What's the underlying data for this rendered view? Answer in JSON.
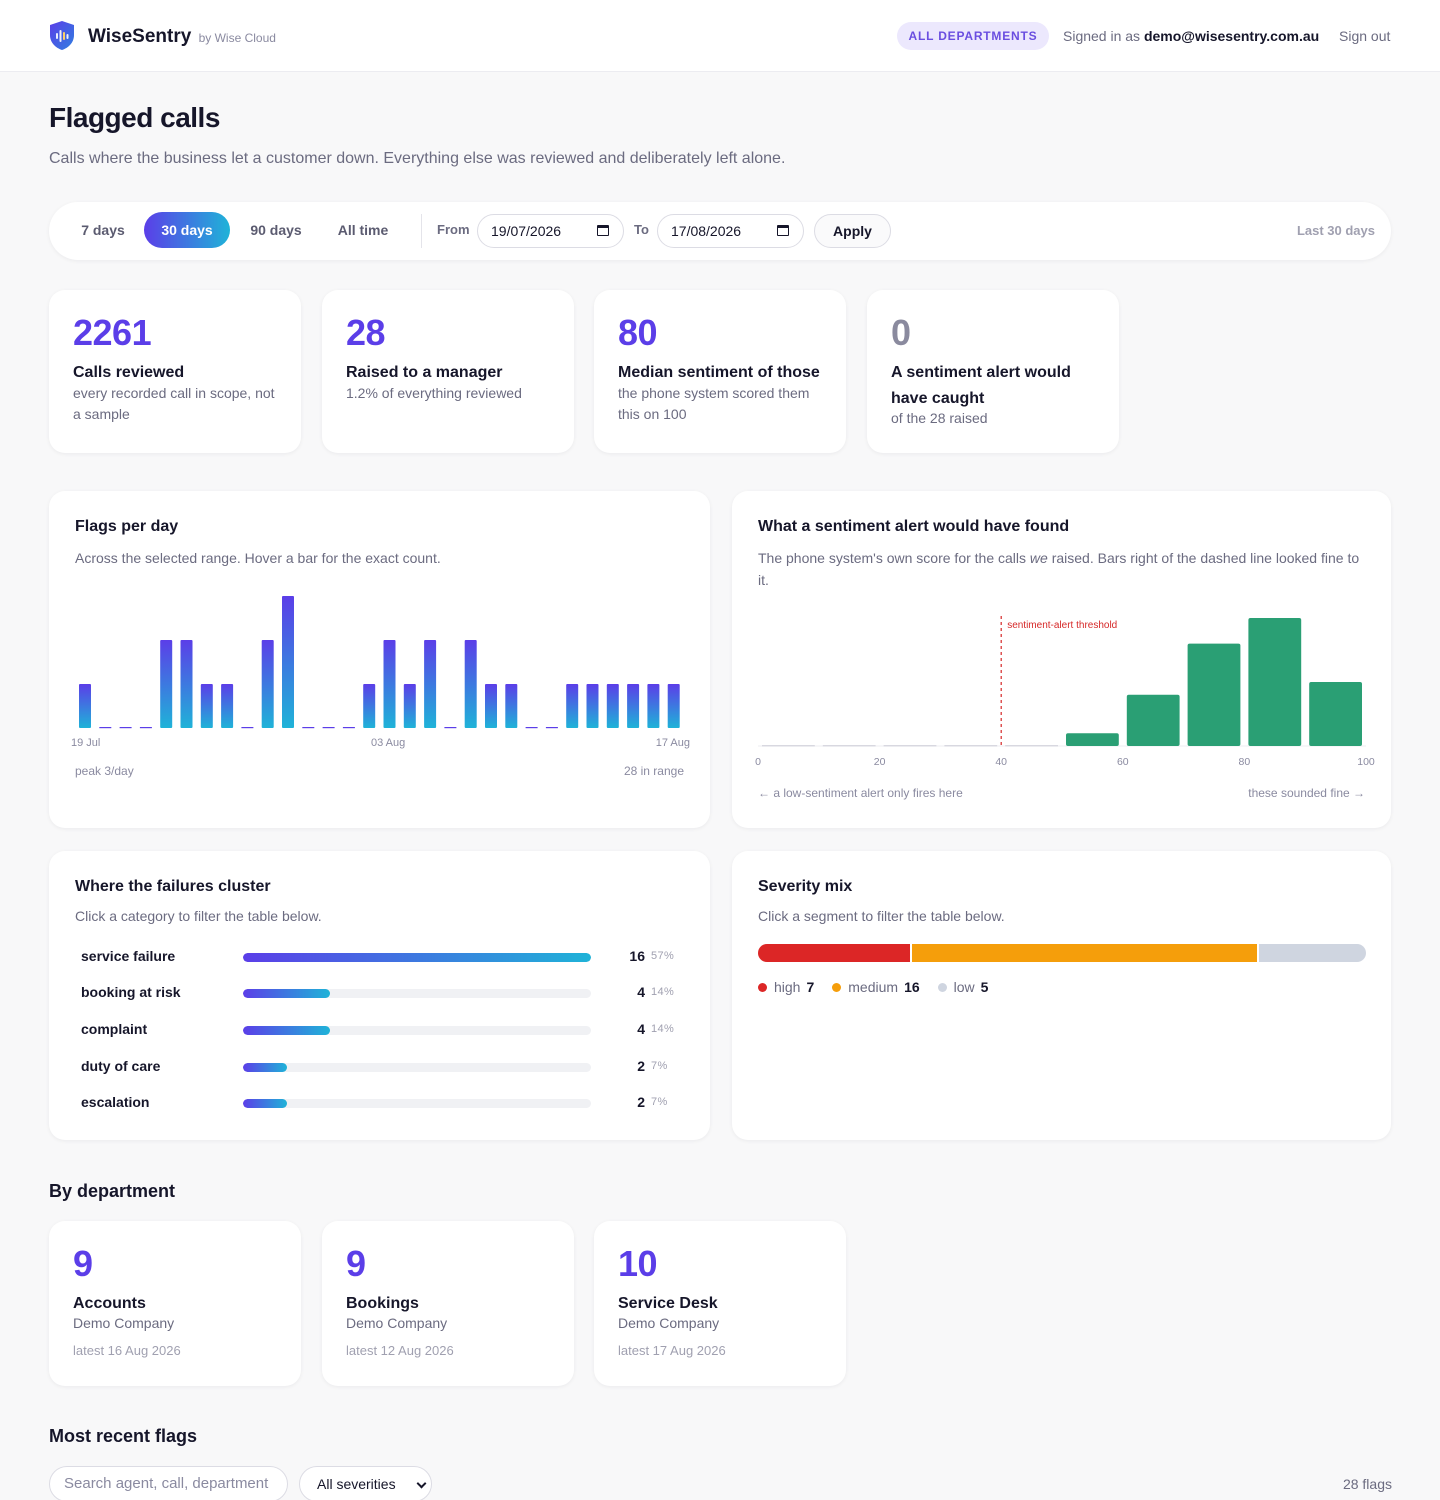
{
  "header": {
    "brand": "WiseSentry",
    "brand_sub": "by Wise Cloud",
    "dept_pill": "ALL DEPARTMENTS",
    "signed_prefix": "Signed in as",
    "user_email": "demo@wisesentry.com.au",
    "signout": "Sign out"
  },
  "page": {
    "title": "Flagged calls",
    "subtitle": "Calls where the business let a customer down. Everything else was reviewed and deliberately left alone."
  },
  "filters": {
    "ranges": [
      "7 days",
      "30 days",
      "90 days",
      "All time"
    ],
    "active_range": "30 days",
    "from_label": "From",
    "from_value": "19/07/2026",
    "to_label": "To",
    "to_value": "17/08/2026",
    "apply": "Apply",
    "range_label": "Last 30 days"
  },
  "stats": [
    {
      "value": "2261",
      "title": "Calls reviewed",
      "desc": "every recorded call in scope, not a sample",
      "muted": false
    },
    {
      "value": "28",
      "title": "Raised to a manager",
      "desc": "1.2% of everything reviewed",
      "muted": false
    },
    {
      "value": "80",
      "title": "Median sentiment of those",
      "desc": "the phone system scored them this on 100",
      "muted": false
    },
    {
      "value": "0",
      "title": "A sentiment alert would have caught",
      "desc": "of the 28 raised",
      "muted": true
    }
  ],
  "flags_chart": {
    "title": "Flags per day",
    "subtitle": "Across the selected range. Hover a bar for the exact count.",
    "x_start": "19 Jul",
    "x_mid": "03 Aug",
    "x_end": "17 Aug",
    "peak": "peak 3/day",
    "total": "28 in range"
  },
  "sentiment_chart": {
    "title": "What a sentiment alert would have found",
    "subtitle_pre": "The phone system's own score for the calls ",
    "subtitle_em": "we",
    "subtitle_post": " raised. Bars right of the dashed line looked fine to it.",
    "threshold_label": "sentiment-alert threshold",
    "left_note": "← a low-sentiment alert only fires here",
    "right_note": "these sounded fine →"
  },
  "chart_data": [
    {
      "type": "bar",
      "title": "Flags per day",
      "x": [
        "19 Jul",
        "20 Jul",
        "21 Jul",
        "22 Jul",
        "23 Jul",
        "24 Jul",
        "25 Jul",
        "26 Jul",
        "27 Jul",
        "28 Jul",
        "29 Jul",
        "30 Jul",
        "31 Jul",
        "01 Aug",
        "02 Aug",
        "03 Aug",
        "04 Aug",
        "05 Aug",
        "06 Aug",
        "07 Aug",
        "08 Aug",
        "09 Aug",
        "10 Aug",
        "11 Aug",
        "12 Aug",
        "13 Aug",
        "14 Aug",
        "15 Aug",
        "16 Aug",
        "17 Aug"
      ],
      "values": [
        1,
        0,
        0,
        0,
        2,
        2,
        1,
        1,
        0,
        2,
        3,
        0,
        0,
        0,
        1,
        2,
        1,
        2,
        0,
        2,
        1,
        1,
        0,
        0,
        1,
        1,
        1,
        1,
        1,
        1
      ],
      "ylim": [
        0,
        3
      ],
      "grid": false,
      "legend": "none"
    },
    {
      "type": "bar",
      "title": "What a sentiment alert would have found",
      "x_bin_starts": [
        0,
        10,
        20,
        30,
        40,
        50,
        60,
        70,
        80,
        90
      ],
      "x_bin_width": 10,
      "values": [
        0,
        0,
        0,
        0,
        0,
        1,
        4,
        8,
        10,
        5
      ],
      "xlim": [
        0,
        100
      ],
      "xticks": [
        0,
        20,
        40,
        60,
        80,
        100
      ],
      "threshold": 40,
      "threshold_label": "sentiment-alert threshold",
      "colors": {
        "bar": "#2a9f74",
        "threshold": "#d62828"
      },
      "grid": false,
      "legend": "none"
    },
    {
      "type": "bar",
      "title": "Where the failures cluster",
      "categories": [
        "service failure",
        "booking at risk",
        "complaint",
        "duty of care",
        "escalation"
      ],
      "values": [
        16,
        4,
        4,
        2,
        2
      ],
      "percents": [
        "57%",
        "14%",
        "14%",
        "7%",
        "7%"
      ]
    },
    {
      "type": "bar",
      "title": "Severity mix",
      "categories": [
        "high",
        "medium",
        "low"
      ],
      "values": [
        7,
        16,
        5
      ],
      "colors": [
        "#dc2626",
        "#f59e0b",
        "#cfd5e0"
      ]
    }
  ],
  "failures": {
    "title": "Where the failures cluster",
    "subtitle": "Click a category to filter the table below.",
    "items": [
      {
        "name": "service failure",
        "count": "16",
        "pct": "57%",
        "value": 16
      },
      {
        "name": "booking at risk",
        "count": "4",
        "pct": "14%",
        "value": 4
      },
      {
        "name": "complaint",
        "count": "4",
        "pct": "14%",
        "value": 4
      },
      {
        "name": "duty of care",
        "count": "2",
        "pct": "7%",
        "value": 2
      },
      {
        "name": "escalation",
        "count": "2",
        "pct": "7%",
        "value": 2
      }
    ]
  },
  "severity": {
    "title": "Severity mix",
    "subtitle": "Click a segment to filter the table below.",
    "items": [
      {
        "label": "high",
        "count": "7",
        "value": 7,
        "color": "#dc2626"
      },
      {
        "label": "medium",
        "count": "16",
        "value": 16,
        "color": "#f59e0b"
      },
      {
        "label": "low",
        "count": "5",
        "value": 5,
        "color": "#cfd5e0"
      }
    ]
  },
  "departments": {
    "heading": "By department",
    "items": [
      {
        "count": "9",
        "name": "Accounts",
        "company": "Demo Company",
        "latest": "latest 16 Aug 2026"
      },
      {
        "count": "9",
        "name": "Bookings",
        "company": "Demo Company",
        "latest": "latest 12 Aug 2026"
      },
      {
        "count": "10",
        "name": "Service Desk",
        "company": "Demo Company",
        "latest": "latest 17 Aug 2026"
      }
    ]
  },
  "recent": {
    "heading": "Most recent flags",
    "search_placeholder": "Search agent, call, department",
    "severity_select": "All severities",
    "count": "28 flags"
  },
  "colors": {
    "accent": "#5b3ee8",
    "accent_end": "#1fb3d8",
    "positive": "#2a9f74",
    "threshold": "#d62828"
  }
}
